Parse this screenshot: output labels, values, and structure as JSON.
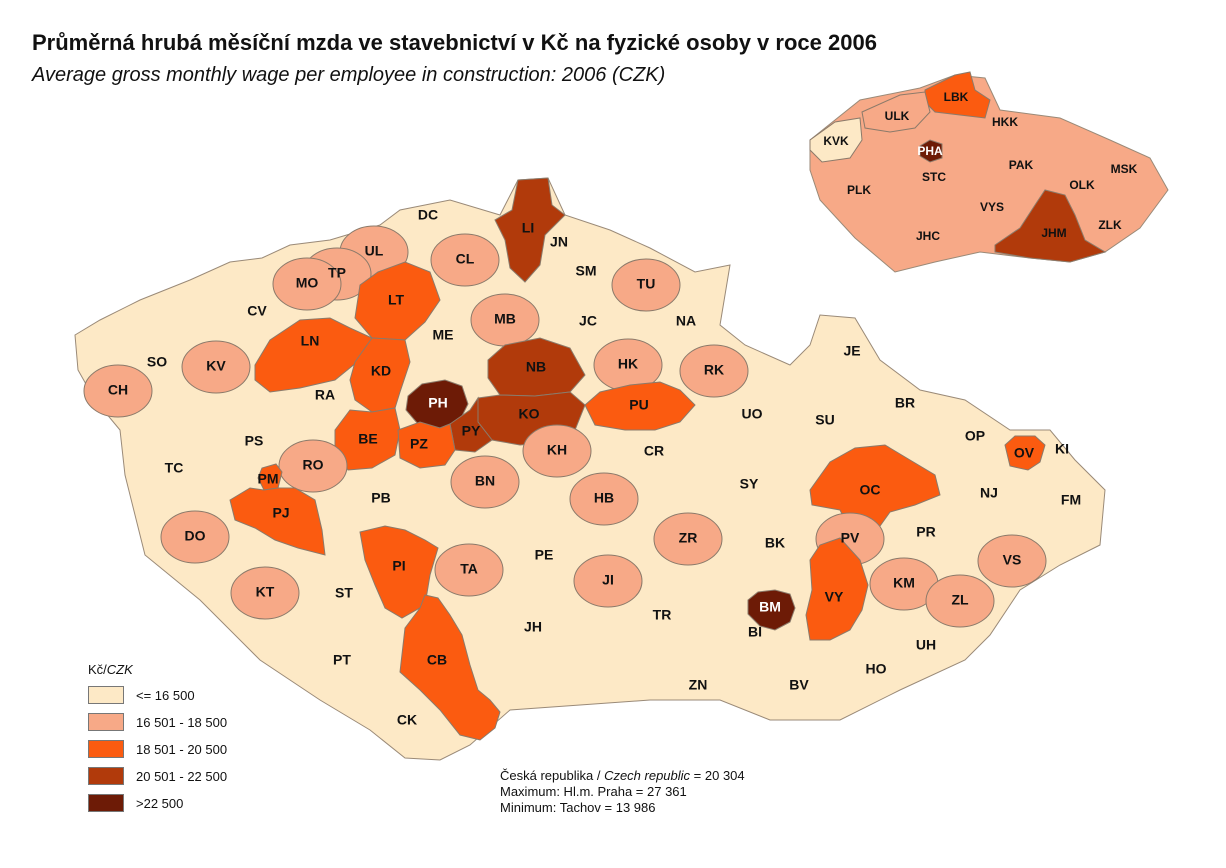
{
  "title": "Průměrná hrubá měsíční mzda ve stavebnictví v Kč na fyzické osoby v roce 2006",
  "subtitle": "Average gross monthly wage per employee in construction: 2006 (CZK)",
  "legend": {
    "title_a": "Kč/",
    "title_b": "CZK",
    "classes": [
      {
        "label": "<= 16 500",
        "color": "#fde9c6"
      },
      {
        "label": "16 501 - 18 500",
        "color": "#f7a987"
      },
      {
        "label": "18 501 - 20 500",
        "color": "#fb5b10"
      },
      {
        "label": "20 501 - 22 500",
        "color": "#b13a0b"
      },
      {
        "label": ">22 500",
        "color": "#6d1b06"
      }
    ]
  },
  "stats": {
    "republic_a": "Česká republika / ",
    "republic_b": "Czech republic",
    "republic_c": " = 20 304",
    "maximum": "Maximum: Hl.m. Praha =  27 361",
    "minimum": "Minimum: Tachov = 13 986"
  },
  "districts": [
    {
      "code": "DC",
      "cls": 0
    },
    {
      "code": "LI",
      "cls": 3
    },
    {
      "code": "JN",
      "cls": 0
    },
    {
      "code": "UL",
      "cls": 1
    },
    {
      "code": "CL",
      "cls": 1
    },
    {
      "code": "TP",
      "cls": 1
    },
    {
      "code": "MO",
      "cls": 1
    },
    {
      "code": "SM",
      "cls": 0
    },
    {
      "code": "TU",
      "cls": 1
    },
    {
      "code": "LT",
      "cls": 2
    },
    {
      "code": "CV",
      "cls": 0
    },
    {
      "code": "MB",
      "cls": 1
    },
    {
      "code": "JC",
      "cls": 0
    },
    {
      "code": "NA",
      "cls": 0
    },
    {
      "code": "ME",
      "cls": 0
    },
    {
      "code": "LN",
      "cls": 2
    },
    {
      "code": "SO",
      "cls": 0
    },
    {
      "code": "KV",
      "cls": 1
    },
    {
      "code": "CH",
      "cls": 1
    },
    {
      "code": "NB",
      "cls": 3
    },
    {
      "code": "KD",
      "cls": 2
    },
    {
      "code": "HK",
      "cls": 1
    },
    {
      "code": "RK",
      "cls": 1
    },
    {
      "code": "JE",
      "cls": 0
    },
    {
      "code": "RA",
      "cls": 0
    },
    {
      "code": "PH",
      "cls": 4
    },
    {
      "code": "KO",
      "cls": 3
    },
    {
      "code": "PU",
      "cls": 2
    },
    {
      "code": "UO",
      "cls": 0
    },
    {
      "code": "SU",
      "cls": 0
    },
    {
      "code": "BR",
      "cls": 0
    },
    {
      "code": "BE",
      "cls": 2
    },
    {
      "code": "PY",
      "cls": 3
    },
    {
      "code": "PZ",
      "cls": 2
    },
    {
      "code": "PS",
      "cls": 0
    },
    {
      "code": "KH",
      "cls": 1
    },
    {
      "code": "CR",
      "cls": 0
    },
    {
      "code": "OP",
      "cls": 0
    },
    {
      "code": "OV",
      "cls": 2
    },
    {
      "code": "KI",
      "cls": 0
    },
    {
      "code": "TC",
      "cls": 0
    },
    {
      "code": "RO",
      "cls": 1
    },
    {
      "code": "PM",
      "cls": 2
    },
    {
      "code": "BN",
      "cls": 1
    },
    {
      "code": "SY",
      "cls": 0
    },
    {
      "code": "OC",
      "cls": 2
    },
    {
      "code": "NJ",
      "cls": 0
    },
    {
      "code": "FM",
      "cls": 0
    },
    {
      "code": "PJ",
      "cls": 2
    },
    {
      "code": "PB",
      "cls": 0
    },
    {
      "code": "HB",
      "cls": 1
    },
    {
      "code": "DO",
      "cls": 1
    },
    {
      "code": "ZR",
      "cls": 1
    },
    {
      "code": "PE",
      "cls": 0
    },
    {
      "code": "BK",
      "cls": 0
    },
    {
      "code": "PV",
      "cls": 1
    },
    {
      "code": "PR",
      "cls": 0
    },
    {
      "code": "VS",
      "cls": 1
    },
    {
      "code": "PI",
      "cls": 2
    },
    {
      "code": "TA",
      "cls": 1
    },
    {
      "code": "JI",
      "cls": 1
    },
    {
      "code": "KT",
      "cls": 1
    },
    {
      "code": "ST",
      "cls": 0
    },
    {
      "code": "KM",
      "cls": 1
    },
    {
      "code": "VY",
      "cls": 2
    },
    {
      "code": "BM",
      "cls": 4
    },
    {
      "code": "ZL",
      "cls": 1
    },
    {
      "code": "TR",
      "cls": 0
    },
    {
      "code": "JH",
      "cls": 0
    },
    {
      "code": "BI",
      "cls": 0
    },
    {
      "code": "UH",
      "cls": 0
    },
    {
      "code": "PT",
      "cls": 0
    },
    {
      "code": "CB",
      "cls": 2
    },
    {
      "code": "HO",
      "cls": 0
    },
    {
      "code": "ZN",
      "cls": 0
    },
    {
      "code": "BV",
      "cls": 0
    },
    {
      "code": "CK",
      "cls": 0
    }
  ],
  "regions": [
    {
      "code": "LBK",
      "cls": 2
    },
    {
      "code": "ULK",
      "cls": 1
    },
    {
      "code": "HKK",
      "cls": 1
    },
    {
      "code": "KVK",
      "cls": 0
    },
    {
      "code": "PHA",
      "cls": 4
    },
    {
      "code": "PAK",
      "cls": 1
    },
    {
      "code": "MSK",
      "cls": 1
    },
    {
      "code": "STC",
      "cls": 1
    },
    {
      "code": "OLK",
      "cls": 1
    },
    {
      "code": "PLK",
      "cls": 1
    },
    {
      "code": "VYS",
      "cls": 1
    },
    {
      "code": "ZLK",
      "cls": 1
    },
    {
      "code": "JHC",
      "cls": 1
    },
    {
      "code": "JHM",
      "cls": 3
    }
  ]
}
